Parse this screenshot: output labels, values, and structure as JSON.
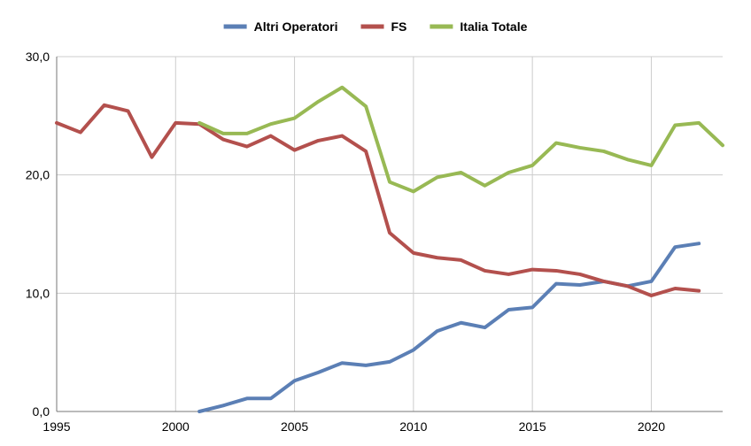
{
  "chart_data": {
    "type": "line",
    "title": "",
    "xlabel": "",
    "ylabel": "",
    "xlim": [
      1995,
      2023
    ],
    "ylim": [
      0,
      30
    ],
    "x_ticks": [
      {
        "value": 1995,
        "label": "1995"
      },
      {
        "value": 2000,
        "label": "2000"
      },
      {
        "value": 2005,
        "label": "2005"
      },
      {
        "value": 2010,
        "label": "2010"
      },
      {
        "value": 2015,
        "label": "2015"
      },
      {
        "value": 2020,
        "label": "2020"
      }
    ],
    "y_ticks": [
      {
        "value": 0,
        "label": "0,0"
      },
      {
        "value": 10,
        "label": "10,0"
      },
      {
        "value": 20,
        "label": "20,0"
      },
      {
        "value": 30,
        "label": "30,0"
      }
    ],
    "grid": true,
    "legend_position": "top-center",
    "series": [
      {
        "name": "Altri Operatori",
        "color": "#5b7fb5",
        "points": [
          [
            2001,
            0.0
          ],
          [
            2002,
            0.5
          ],
          [
            2003,
            1.1
          ],
          [
            2004,
            1.1
          ],
          [
            2005,
            2.6
          ],
          [
            2006,
            3.3
          ],
          [
            2007,
            4.1
          ],
          [
            2008,
            3.9
          ],
          [
            2009,
            4.2
          ],
          [
            2010,
            5.2
          ],
          [
            2011,
            6.8
          ],
          [
            2012,
            7.5
          ],
          [
            2013,
            7.1
          ],
          [
            2014,
            8.6
          ],
          [
            2015,
            8.8
          ],
          [
            2016,
            10.8
          ],
          [
            2017,
            10.7
          ],
          [
            2018,
            11.0
          ],
          [
            2019,
            10.6
          ],
          [
            2020,
            11.0
          ],
          [
            2021,
            13.9
          ],
          [
            2022,
            14.2
          ]
        ]
      },
      {
        "name": "FS",
        "color": "#b3504d",
        "points": [
          [
            1995,
            24.4
          ],
          [
            1996,
            23.6
          ],
          [
            1997,
            25.9
          ],
          [
            1998,
            25.4
          ],
          [
            1999,
            21.5
          ],
          [
            2000,
            24.4
          ],
          [
            2001,
            24.3
          ],
          [
            2002,
            23.0
          ],
          [
            2003,
            22.4
          ],
          [
            2004,
            23.3
          ],
          [
            2005,
            22.1
          ],
          [
            2006,
            22.9
          ],
          [
            2007,
            23.3
          ],
          [
            2008,
            22.0
          ],
          [
            2009,
            15.1
          ],
          [
            2010,
            13.4
          ],
          [
            2011,
            13.0
          ],
          [
            2012,
            12.8
          ],
          [
            2013,
            11.9
          ],
          [
            2014,
            11.6
          ],
          [
            2015,
            12.0
          ],
          [
            2016,
            11.9
          ],
          [
            2017,
            11.6
          ],
          [
            2018,
            11.0
          ],
          [
            2019,
            10.6
          ],
          [
            2020,
            9.8
          ],
          [
            2021,
            10.4
          ],
          [
            2022,
            10.2
          ]
        ]
      },
      {
        "name": "Italia Totale",
        "color": "#98b954",
        "points": [
          [
            2001,
            24.4
          ],
          [
            2002,
            23.5
          ],
          [
            2003,
            23.5
          ],
          [
            2004,
            24.3
          ],
          [
            2005,
            24.8
          ],
          [
            2006,
            26.2
          ],
          [
            2007,
            27.4
          ],
          [
            2008,
            25.8
          ],
          [
            2009,
            19.4
          ],
          [
            2010,
            18.6
          ],
          [
            2011,
            19.8
          ],
          [
            2012,
            20.2
          ],
          [
            2013,
            19.1
          ],
          [
            2014,
            20.2
          ],
          [
            2015,
            20.8
          ],
          [
            2016,
            22.7
          ],
          [
            2017,
            22.3
          ],
          [
            2018,
            22.0
          ],
          [
            2019,
            21.3
          ],
          [
            2020,
            20.8
          ],
          [
            2021,
            24.2
          ],
          [
            2022,
            24.4
          ],
          [
            2023,
            22.5
          ]
        ]
      }
    ]
  }
}
